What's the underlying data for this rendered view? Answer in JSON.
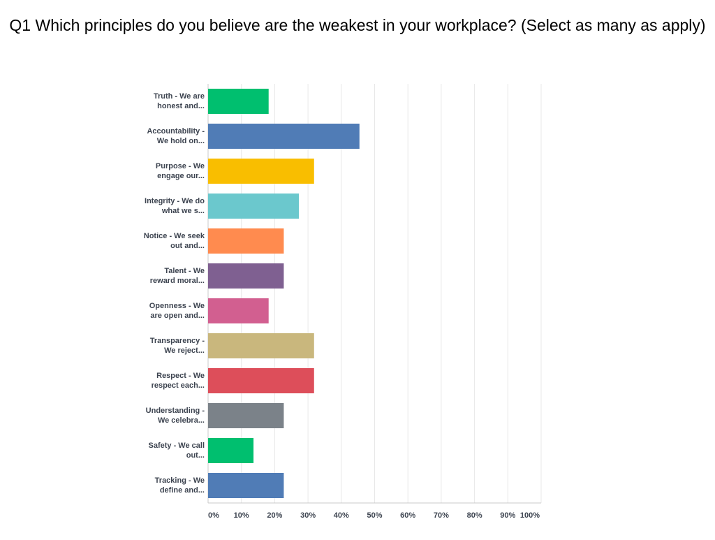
{
  "chart_data": {
    "type": "bar",
    "title": "Q1 Which principles do you believe are the weakest in your workplace? (Select as many as apply)",
    "categories": [
      "Truth - We are honest and...",
      "Accountability - We hold on...",
      "Purpose - We engage our...",
      "Integrity - We do what we s...",
      "Notice - We seek out and...",
      "Talent - We reward moral...",
      "Openness - We are open and...",
      "Transparency - We reject...",
      "Respect - We respect each...",
      "Understanding - We celebra...",
      "Safety - We call out...",
      "Tracking - We define and..."
    ],
    "values": [
      18.18,
      45.45,
      31.82,
      27.27,
      22.73,
      22.73,
      18.18,
      31.82,
      31.82,
      22.73,
      13.64,
      22.73
    ],
    "colors": [
      "#00bf6f",
      "#507cb6",
      "#f9be00",
      "#6bc8cd",
      "#ff8b4f",
      "#7f6091",
      "#d25f90",
      "#c9b77d",
      "#dd4e5a",
      "#7b8289",
      "#00bf6f",
      "#507cb6"
    ],
    "xlim": [
      0,
      100
    ],
    "xticks": [
      {
        "value": 0,
        "label": "0%"
      },
      {
        "value": 10,
        "label": "10%"
      },
      {
        "value": 20,
        "label": "20%"
      },
      {
        "value": 30,
        "label": "30%"
      },
      {
        "value": 40,
        "label": "40%"
      },
      {
        "value": 50,
        "label": "50%"
      },
      {
        "value": 60,
        "label": "60%"
      },
      {
        "value": 70,
        "label": "70%"
      },
      {
        "value": 80,
        "label": "80%"
      },
      {
        "value": 90,
        "label": "90%"
      },
      {
        "value": 100,
        "label": "100%"
      }
    ],
    "grid": true
  }
}
